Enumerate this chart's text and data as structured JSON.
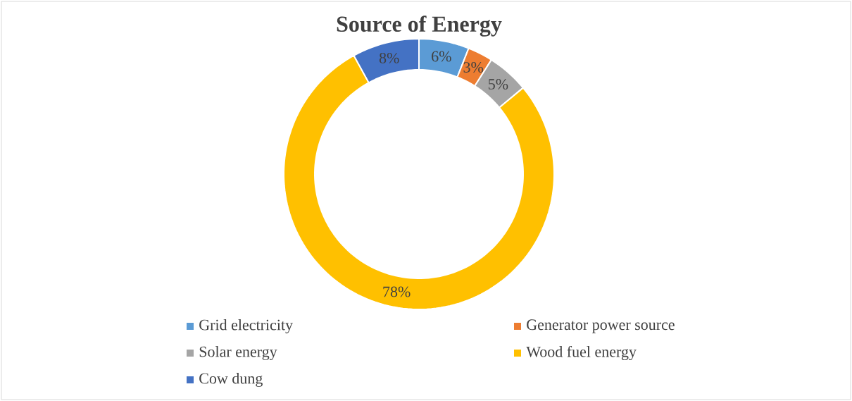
{
  "chart_data": {
    "type": "donut",
    "title": "Source of Energy",
    "categories": [
      "Grid electricity",
      "Generator power source",
      "Solar energy",
      "Wood fuel energy",
      "Cow dung"
    ],
    "values": [
      6,
      3,
      5,
      78,
      8
    ],
    "colors": [
      "#5b9bd5",
      "#ed7d31",
      "#a5a5a5",
      "#ffc000",
      "#4472c4"
    ],
    "value_labels": [
      "6%",
      "3%",
      "5%",
      "78%",
      "8%"
    ],
    "legend": "bottom"
  }
}
